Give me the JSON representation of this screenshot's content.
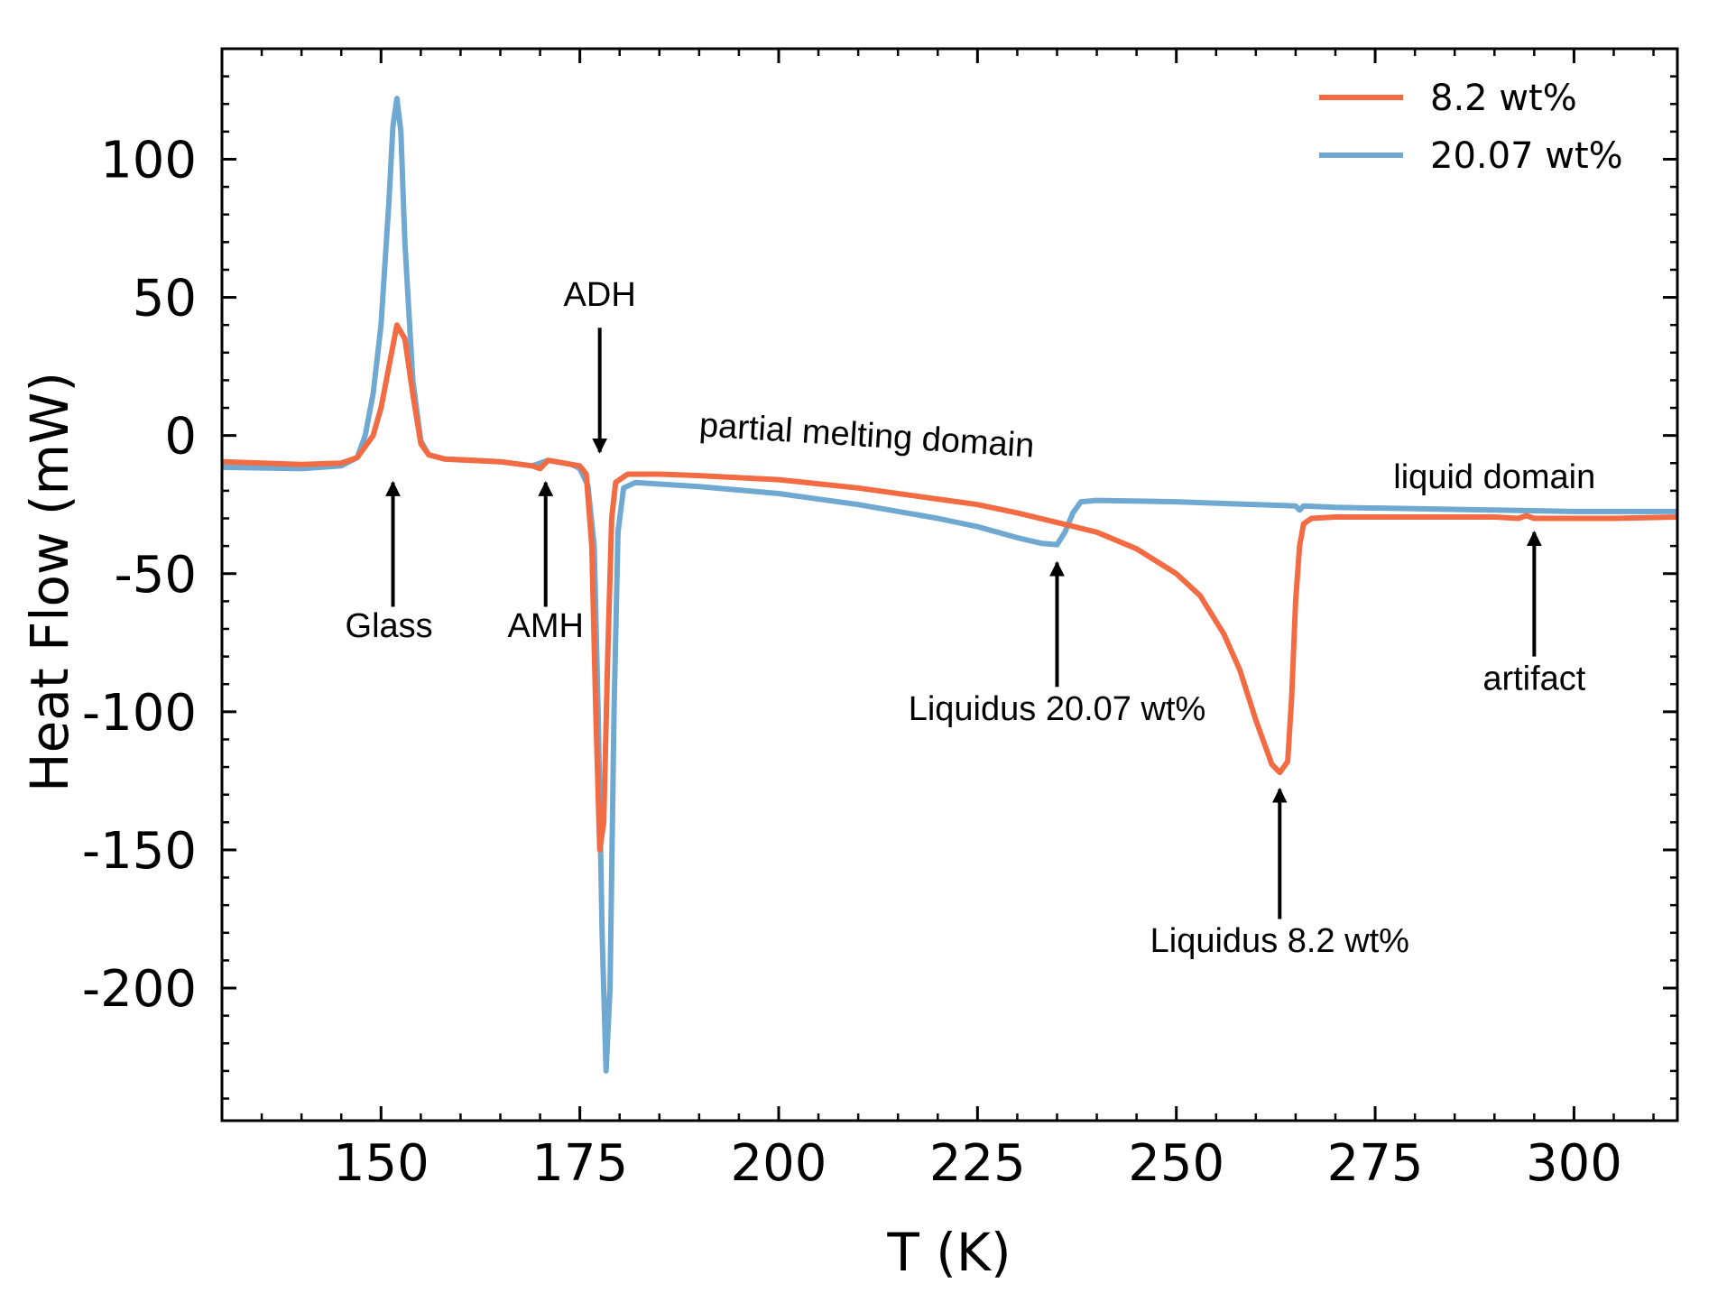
{
  "chart_data": {
    "type": "line",
    "title": "",
    "xlabel": "T (K)",
    "ylabel": "Heat Flow (mW)",
    "xlim": [
      130,
      313
    ],
    "ylim": [
      -248,
      140
    ],
    "xticks": [
      150,
      175,
      200,
      225,
      250,
      275,
      300
    ],
    "yticks": [
      100,
      50,
      0,
      -50,
      -100,
      -150,
      -200
    ],
    "grid": false,
    "legend_position": "top-right",
    "colors": {
      "s1": "#f26b43",
      "s2": "#6fa8d1"
    },
    "series": [
      {
        "name": "8.2 wt%",
        "color": "#f26b43",
        "points": [
          [
            130,
            -9.5
          ],
          [
            140,
            -10.5
          ],
          [
            145,
            -10
          ],
          [
            147,
            -8
          ],
          [
            149,
            0
          ],
          [
            150,
            10
          ],
          [
            151,
            25
          ],
          [
            152,
            40
          ],
          [
            153,
            35
          ],
          [
            154,
            15
          ],
          [
            155,
            -3
          ],
          [
            156,
            -7
          ],
          [
            158,
            -8.5
          ],
          [
            165,
            -9.5
          ],
          [
            169,
            -11
          ],
          [
            170,
            -12
          ],
          [
            171,
            -9
          ],
          [
            172,
            -9.5
          ],
          [
            174,
            -10.5
          ],
          [
            175,
            -11
          ],
          [
            175.8,
            -14
          ],
          [
            176.5,
            -40
          ],
          [
            177,
            -100
          ],
          [
            177.5,
            -150
          ],
          [
            178,
            -140
          ],
          [
            178.5,
            -80
          ],
          [
            179,
            -30
          ],
          [
            179.5,
            -17
          ],
          [
            181,
            -14
          ],
          [
            185,
            -14
          ],
          [
            190,
            -14.5
          ],
          [
            200,
            -16
          ],
          [
            210,
            -19
          ],
          [
            220,
            -23
          ],
          [
            225,
            -25
          ],
          [
            230,
            -28
          ],
          [
            235,
            -31.5
          ],
          [
            240,
            -35
          ],
          [
            245,
            -41
          ],
          [
            250,
            -50
          ],
          [
            253,
            -58
          ],
          [
            256,
            -72
          ],
          [
            258,
            -85
          ],
          [
            260,
            -103
          ],
          [
            262,
            -119
          ],
          [
            263,
            -122
          ],
          [
            264,
            -118
          ],
          [
            264.5,
            -95
          ],
          [
            265,
            -60
          ],
          [
            265.5,
            -40
          ],
          [
            266,
            -32
          ],
          [
            267,
            -30
          ],
          [
            270,
            -29.5
          ],
          [
            280,
            -29.5
          ],
          [
            290,
            -29.5
          ],
          [
            293,
            -30
          ],
          [
            294,
            -29
          ],
          [
            295,
            -30
          ],
          [
            300,
            -30
          ],
          [
            305,
            -30
          ],
          [
            313,
            -29.5
          ]
        ]
      },
      {
        "name": "20.07 wt%",
        "color": "#6fa8d1",
        "points": [
          [
            130,
            -11.5
          ],
          [
            140,
            -12
          ],
          [
            145,
            -11
          ],
          [
            147,
            -8
          ],
          [
            148,
            0
          ],
          [
            149,
            15
          ],
          [
            150,
            40
          ],
          [
            151,
            85
          ],
          [
            151.5,
            112
          ],
          [
            152,
            122
          ],
          [
            152.5,
            110
          ],
          [
            153,
            70
          ],
          [
            154,
            20
          ],
          [
            155,
            -2
          ],
          [
            156,
            -7
          ],
          [
            158,
            -8.5
          ],
          [
            165,
            -9.5
          ],
          [
            169,
            -11
          ],
          [
            170,
            -10
          ],
          [
            171,
            -9
          ],
          [
            172,
            -9.5
          ],
          [
            174,
            -10.5
          ],
          [
            175,
            -12
          ],
          [
            176,
            -18
          ],
          [
            176.8,
            -40
          ],
          [
            177.3,
            -100
          ],
          [
            177.8,
            -180
          ],
          [
            178.3,
            -230
          ],
          [
            178.8,
            -200
          ],
          [
            179.3,
            -100
          ],
          [
            179.8,
            -35
          ],
          [
            180.5,
            -19
          ],
          [
            182,
            -17
          ],
          [
            190,
            -18.5
          ],
          [
            200,
            -21
          ],
          [
            210,
            -25
          ],
          [
            220,
            -30
          ],
          [
            225,
            -33
          ],
          [
            230,
            -37
          ],
          [
            233,
            -39
          ],
          [
            235,
            -39.5
          ],
          [
            236,
            -35
          ],
          [
            237,
            -28
          ],
          [
            238,
            -24
          ],
          [
            240,
            -23.5
          ],
          [
            250,
            -24
          ],
          [
            260,
            -25
          ],
          [
            265,
            -25.5
          ],
          [
            265.5,
            -27
          ],
          [
            266,
            -25.5
          ],
          [
            270,
            -26
          ],
          [
            280,
            -26.5
          ],
          [
            290,
            -27
          ],
          [
            300,
            -27.5
          ],
          [
            313,
            -27.5
          ]
        ]
      }
    ],
    "annotations": [
      {
        "text": "Glass",
        "arrow_x": 151.5,
        "arrow_tip_y": -17,
        "arrow_tail_y": -62,
        "dir": "up",
        "text_x": 151,
        "text_y": -73
      },
      {
        "text": "AMH",
        "arrow_x": 170.7,
        "arrow_tip_y": -17,
        "arrow_tail_y": -62,
        "dir": "up",
        "text_x": 170.7,
        "text_y": -73
      },
      {
        "text": "ADH",
        "arrow_x": 177.5,
        "arrow_tip_y": -6,
        "arrow_tail_y": 39,
        "dir": "down",
        "text_x": 177.5,
        "text_y": 47
      },
      {
        "text": "partial melting domain",
        "text_x": 211,
        "text_y": -4,
        "rotate": 3.6
      },
      {
        "text": "Liquidus 20.07 wt%",
        "arrow_x": 235,
        "arrow_tip_y": -46,
        "arrow_tail_y": -91,
        "dir": "up",
        "text_x": 235,
        "text_y": -103
      },
      {
        "text": "Liquidus 8.2 wt%",
        "arrow_x": 263,
        "arrow_tip_y": -128,
        "arrow_tail_y": -175,
        "dir": "up",
        "text_x": 263,
        "text_y": -187
      },
      {
        "text": "liquid domain",
        "text_x": 290,
        "text_y": -19
      },
      {
        "text": "artifact",
        "arrow_x": 295,
        "arrow_tip_y": -35,
        "arrow_tail_y": -80,
        "dir": "up",
        "text_x": 295,
        "text_y": -92
      }
    ]
  }
}
